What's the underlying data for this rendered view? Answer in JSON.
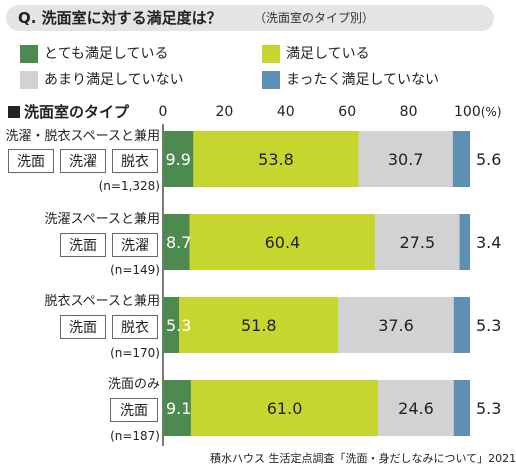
{
  "question": {
    "title": "Q. 洗面室に対する満足度は？",
    "subtitle": "（洗面室のタイプ別）"
  },
  "section_title": "洗面室のタイプ",
  "credit": "積水ハウス 生活定点調査「洗面・身だしなみについて」2021",
  "legend": [
    {
      "label": "とても満足している",
      "color": "#4d8a4f"
    },
    {
      "label": "満足している",
      "color": "#c6d62f"
    },
    {
      "label": "あまり満足していない",
      "color": "#d2d2d2"
    },
    {
      "label": "まったく満足していない",
      "color": "#5d8fb3"
    }
  ],
  "groups": [
    {
      "label": "洗濯・脱衣スペースと兼用",
      "chips": [
        "洗面",
        "洗濯",
        "脱衣"
      ],
      "n": "(n=1,328)"
    },
    {
      "label": "洗濯スペースと兼用",
      "chips": [
        "洗面",
        "洗濯"
      ],
      "n": "(n=149)"
    },
    {
      "label": "脱衣スペースと兼用",
      "chips": [
        "洗面",
        "脱衣"
      ],
      "n": "(n=170)"
    },
    {
      "label": "洗面のみ",
      "chips": [
        "洗面"
      ],
      "n": "(n=187)"
    }
  ],
  "chart_data": {
    "type": "bar",
    "orientation": "horizontal",
    "stacked": true,
    "categories": [
      "洗濯・脱衣スペースと兼用",
      "洗濯スペースと兼用",
      "脱衣スペースと兼用",
      "洗面のみ"
    ],
    "series": [
      {
        "name": "とても満足している",
        "color": "#4d8a4f",
        "values": [
          9.9,
          8.7,
          5.3,
          9.1
        ]
      },
      {
        "name": "満足している",
        "color": "#c6d62f",
        "values": [
          53.8,
          60.4,
          51.8,
          61.0
        ]
      },
      {
        "name": "あまり満足していない",
        "color": "#d2d2d2",
        "values": [
          30.7,
          27.5,
          37.6,
          24.6
        ]
      },
      {
        "name": "まったく満足していない",
        "color": "#5d8fb3",
        "values": [
          5.6,
          3.4,
          5.3,
          5.3
        ]
      }
    ],
    "labels": [
      [
        "9.9",
        "53.8",
        "30.7",
        "5.6"
      ],
      [
        "8.7",
        "60.4",
        "27.5",
        "3.4"
      ],
      [
        "5.3",
        "51.8",
        "37.6",
        "5.3"
      ],
      [
        "9.1",
        "61.0",
        "24.6",
        "5.3"
      ]
    ],
    "xlim": [
      0,
      100
    ],
    "xticks": [
      "0",
      "20",
      "40",
      "60",
      "80",
      "100"
    ],
    "xunit": "(%)",
    "grid": false
  }
}
